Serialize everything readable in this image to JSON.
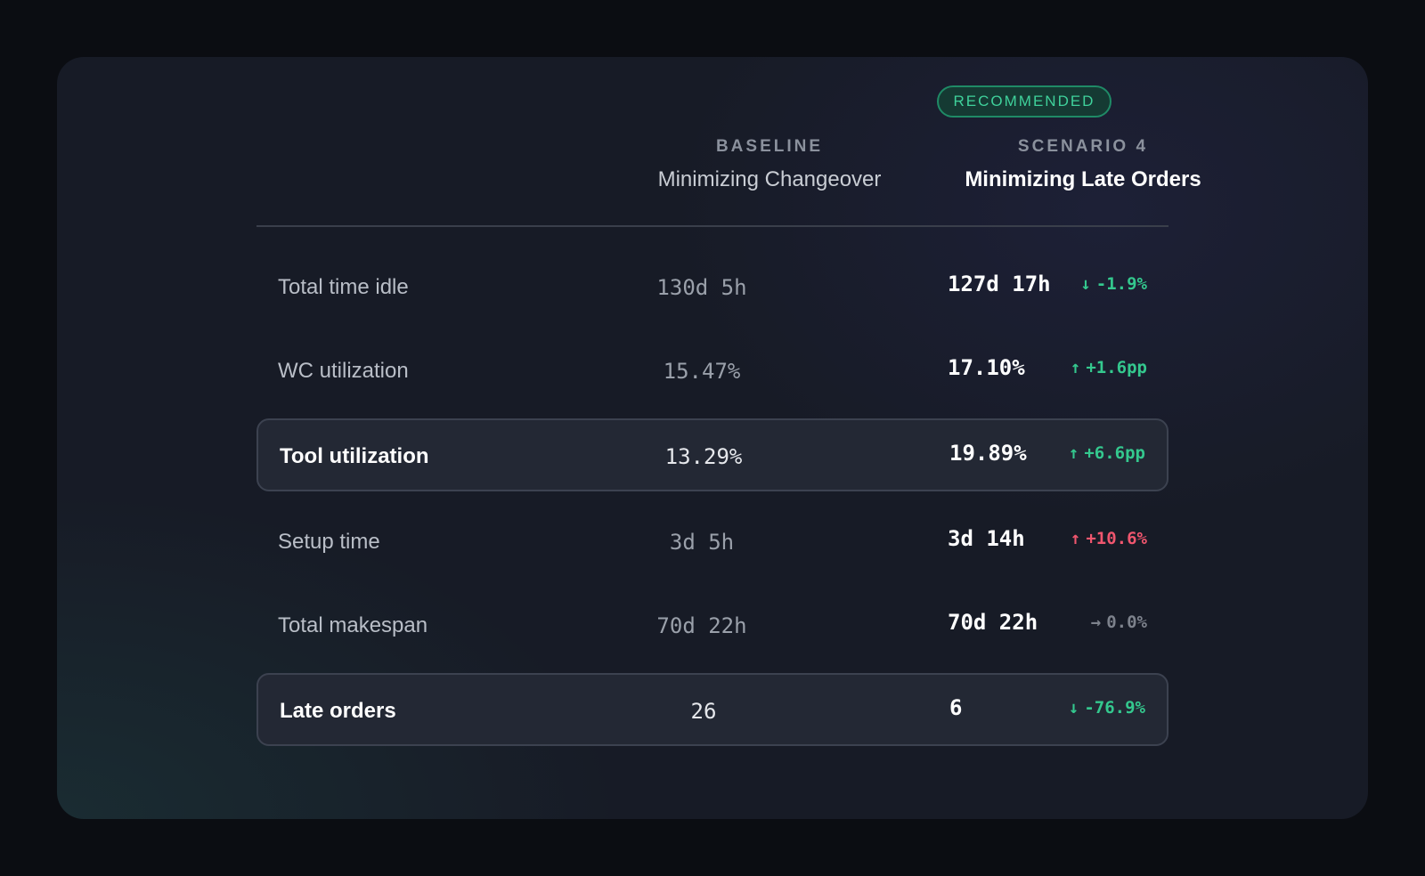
{
  "header": {
    "badge": "RECOMMENDED",
    "baseline": {
      "eyebrow": "BASELINE",
      "title": "Minimizing Changeover"
    },
    "scenario": {
      "eyebrow": "SCENARIO 4",
      "title": "Minimizing Late Orders"
    }
  },
  "colors": {
    "good": "#34c88e",
    "bad": "#f0566e",
    "neutral": "#7d828c",
    "badge": "#3fd19b"
  },
  "rows": [
    {
      "label": "Total time idle",
      "baseline": "130d 5h",
      "scenario": "127d 17h",
      "arrow": "↓",
      "delta": "-1.9%",
      "trend": "good",
      "highlighted": false
    },
    {
      "label": "WC utilization",
      "baseline": "15.47%",
      "scenario": "17.10%",
      "arrow": "↑",
      "delta": "+1.6pp",
      "trend": "good",
      "highlighted": false
    },
    {
      "label": "Tool utilization",
      "baseline": "13.29%",
      "scenario": "19.89%",
      "arrow": "↑",
      "delta": "+6.6pp",
      "trend": "good",
      "highlighted": true
    },
    {
      "label": "Setup time",
      "baseline": "3d 5h",
      "scenario": "3d 14h",
      "arrow": "↑",
      "delta": "+10.6%",
      "trend": "bad",
      "highlighted": false
    },
    {
      "label": "Total makespan",
      "baseline": "70d 22h",
      "scenario": "70d 22h",
      "arrow": "→",
      "delta": "0.0%",
      "trend": "flat",
      "highlighted": false
    },
    {
      "label": "Late orders",
      "baseline": "26",
      "scenario": "6",
      "arrow": "↓",
      "delta": "-76.9%",
      "trend": "good",
      "highlighted": true
    }
  ]
}
